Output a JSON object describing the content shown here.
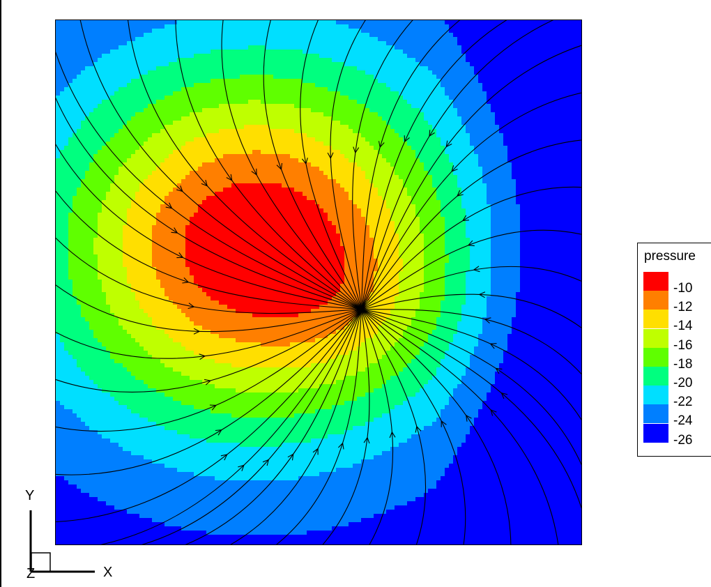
{
  "chart_data": {
    "type": "heatmap",
    "variable": "pressure",
    "legend": {
      "title": "pressure",
      "placement": "right",
      "levels": [
        {
          "label": "-10",
          "color": "#ff0000"
        },
        {
          "label": "-12",
          "color": "#ff7f00"
        },
        {
          "label": "-14",
          "color": "#ffdf00"
        },
        {
          "label": "-16",
          "color": "#bfff00"
        },
        {
          "label": "-18",
          "color": "#5fff00"
        },
        {
          "label": "-20",
          "color": "#00ff7f"
        },
        {
          "label": "-22",
          "color": "#00dfff"
        },
        {
          "label": "-24",
          "color": "#007fff"
        },
        {
          "label": "-26",
          "color": "#0000ff"
        }
      ]
    },
    "field": {
      "peak_value": -9,
      "edge_value": -26.5,
      "peak_location": [
        0.38,
        0.57
      ],
      "sink_location": [
        0.58,
        0.45
      ]
    },
    "streamlines": true,
    "axes": {
      "x_label": "X",
      "y_label": "Y",
      "z_label": "Z",
      "ticks": false,
      "grid": false
    }
  }
}
